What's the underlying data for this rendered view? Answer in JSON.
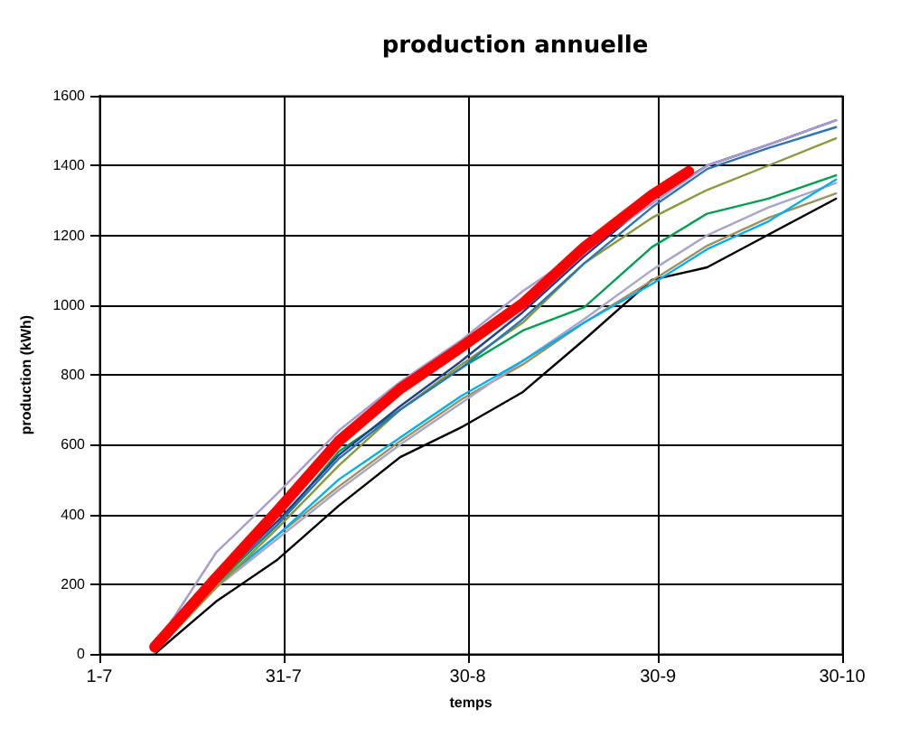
{
  "chart_data": {
    "type": "line",
    "title": "production annuelle",
    "xlabel": "temps",
    "ylabel": "production (kWh)",
    "x": [
      "--07-10",
      "--07-20",
      "--07-30",
      "--08-09",
      "--08-19",
      "--08-29",
      "--09-08",
      "--09-18",
      "--09-29",
      "--10-08",
      "--10-18",
      "--10-29"
    ],
    "xlim": [
      "--07-01",
      "--10-30"
    ],
    "xticks": [
      {
        "value": "--07-01",
        "label": "1-7"
      },
      {
        "value": "--07-31",
        "label": "31-7"
      },
      {
        "value": "--08-30",
        "label": "30-8"
      },
      {
        "value": "--09-30",
        "label": "30-9"
      },
      {
        "value": "--10-30",
        "label": "30-10"
      }
    ],
    "ylim": [
      0,
      1600
    ],
    "yticks": [
      0,
      200,
      400,
      600,
      800,
      1000,
      1200,
      1400,
      1600
    ],
    "grid": true,
    "marker": "none",
    "line_style": "solid",
    "series": [
      {
        "color": "#000000",
        "values": [
          0,
          150,
          270,
          425,
          564,
          650,
          751,
          901,
          1072,
          1108,
          1202,
          1305
        ]
      },
      {
        "color": "#a09060",
        "values": [
          5,
          195,
          340,
          480,
          610,
          730,
          830,
          950,
          1070,
          1170,
          1250,
          1320
        ]
      },
      {
        "color": "#a6a6c8",
        "values": [
          5,
          190,
          330,
          470,
          600,
          720,
          840,
          960,
          1100,
          1200,
          1280,
          1350
        ]
      },
      {
        "color": "#00b0f0",
        "values": [
          5,
          200,
          340,
          500,
          620,
          740,
          840,
          950,
          1060,
          1160,
          1240,
          1360
        ]
      },
      {
        "color": "#00a050",
        "values": [
          5,
          200,
          370,
          580,
          700,
          820,
          927,
          994,
          1166,
          1262,
          1305,
          1372
        ]
      },
      {
        "color": "#8a9a3a",
        "values": [
          5,
          190,
          360,
          540,
          700,
          830,
          950,
          1120,
          1250,
          1330,
          1400,
          1478
        ]
      },
      {
        "color": "#2e75b6",
        "values": [
          10,
          210,
          370,
          560,
          700,
          820,
          960,
          1120,
          1280,
          1390,
          1450,
          1510
        ]
      },
      {
        "color": "#1f3f8f",
        "values": [
          10,
          215,
          380,
          570,
          710,
          840,
          980,
          1140,
          1300,
          1400,
          1460,
          1530
        ]
      },
      {
        "color": "#a99bd0",
        "values": [
          20,
          290,
          460,
          640,
          780,
          900,
          1040,
          1160,
          1290,
          1400,
          1460,
          1530
        ]
      },
      {
        "color": "#ff0000",
        "x": [
          "--07-10",
          "--07-20",
          "--07-30",
          "--08-09",
          "--08-19",
          "--08-29",
          "--09-08",
          "--09-18",
          "--09-29",
          "--10-05"
        ],
        "values": [
          20,
          218,
          410,
          610,
          760,
          880,
          1005,
          1166,
          1315,
          1383
        ]
      }
    ]
  }
}
